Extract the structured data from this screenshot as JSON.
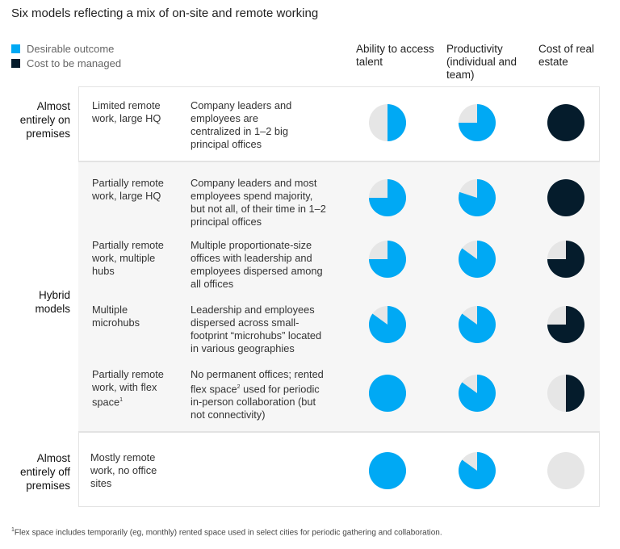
{
  "chart_data": {
    "type": "table",
    "title": "Six models reflecting a mix of on-site and remote working",
    "legend": [
      {
        "label": "Desirable outcome",
        "color": "#00a9f4"
      },
      {
        "label": "Cost to be managed",
        "color": "#051c2c"
      }
    ],
    "empty_color": "#e6e6e6",
    "columns": [
      "Ability to access talent",
      "Productivity (individual and team)",
      "Cost of real estate"
    ],
    "column_kinds": [
      "desirable",
      "desirable",
      "cost"
    ],
    "sections": [
      {
        "label": "Almost entirely on premises"
      },
      {
        "label": "Hybrid models"
      },
      {
        "label": "Almost entirely off premises"
      }
    ],
    "rows": [
      {
        "section": 0,
        "model": "Limited remote work, large HQ",
        "description": "Company leaders and employees are centralized in 1–2 big principal offices",
        "values": [
          0.5,
          0.75,
          1
        ]
      },
      {
        "section": 1,
        "model": "Partially remote work, large HQ",
        "description": "Company leaders and most employees spend majority, but not all, of their time in 1–2 principal offices",
        "values": [
          0.75,
          0.8,
          1
        ]
      },
      {
        "section": 1,
        "model": "Partially remote work, multiple hubs",
        "description": "Multiple proportionate-size offices with leadership and employees dispersed among all offices",
        "values": [
          0.75,
          0.85,
          0.75
        ]
      },
      {
        "section": 1,
        "model": "Multiple microhubs",
        "description": "Leadership and employees dispersed across small-footprint “microhubs” located in various geographies",
        "values": [
          0.85,
          0.85,
          0.75
        ]
      },
      {
        "section": 1,
        "model": "Partially remote work, with flex space",
        "model_sup": "1",
        "description_a": "No permanent offices; rented flex space",
        "description_sup": "2",
        "description_b": " used for periodic in-person collaboration (but not connectivity)",
        "values": [
          1,
          0.85,
          0.5
        ]
      },
      {
        "section": 2,
        "model": "Mostly remote work, no office sites",
        "description": "",
        "values": [
          1,
          0.85,
          0
        ]
      }
    ],
    "footnote_sup": "1",
    "footnote": "Flex space includes temporarily (eg, monthly) rented space used in select cities for periodic gathering and collaboration."
  }
}
